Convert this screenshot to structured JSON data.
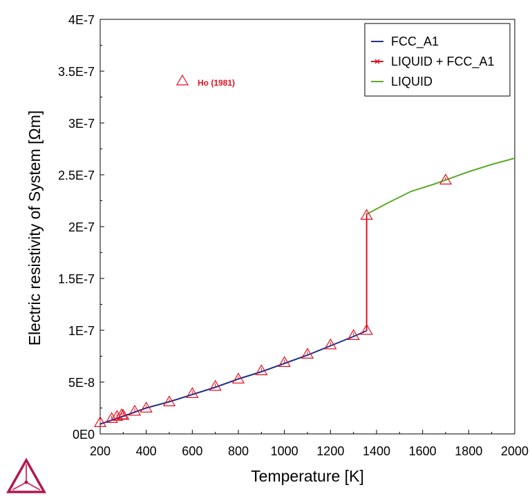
{
  "chart_data": {
    "type": "line",
    "xlabel": "Temperature [K]",
    "ylabel": "Electric resistivity of System [Ωm]",
    "xlim": [
      200,
      2000
    ],
    "ylim": [
      0,
      4e-07
    ],
    "x_ticks": [
      200,
      400,
      600,
      800,
      1000,
      1200,
      1400,
      1600,
      1800,
      2000
    ],
    "y_ticks": [
      0,
      5e-08,
      1e-07,
      1.5e-07,
      2e-07,
      2.5e-07,
      3e-07,
      3.5e-07,
      4e-07
    ],
    "x_tick_labels": [
      "200",
      "400",
      "600",
      "800",
      "1000",
      "1200",
      "1400",
      "1600",
      "1800",
      "2000"
    ],
    "y_tick_labels": [
      "0E0",
      "5E-8",
      "1E-7",
      "1.5E-7",
      "2E-7",
      "2.5E-7",
      "3E-7",
      "3.5E-7",
      "4E-7"
    ],
    "grid": false,
    "legend_position": "top-right",
    "series": [
      {
        "name": "FCC_A1",
        "color": "#1f2f8a",
        "marker": "none",
        "x": [
          200,
          300,
          400,
          500,
          600,
          700,
          800,
          900,
          1000,
          1100,
          1200,
          1300,
          1357
        ],
        "y": [
          9.5e-09,
          1.7e-08,
          2.5e-08,
          3.1e-08,
          3.8e-08,
          4.5e-08,
          5.3e-08,
          6e-08,
          6.8e-08,
          7.6e-08,
          8.5e-08,
          9.4e-08,
          9.95e-08
        ]
      },
      {
        "name": "LIQUID + FCC_A1",
        "color": "#e01020",
        "marker": "x",
        "x": [
          1357,
          1357
        ],
        "y": [
          9.95e-08,
          2.12e-07
        ]
      },
      {
        "name": "LIQUID",
        "color": "#5aaa28",
        "marker": "none",
        "x": [
          1357,
          1450,
          1550,
          1650,
          1700,
          1800,
          1900,
          2000
        ],
        "y": [
          2.12e-07,
          2.23e-07,
          2.34e-07,
          2.41e-07,
          2.45e-07,
          2.53e-07,
          2.6e-07,
          2.66e-07
        ]
      }
    ],
    "experimental": {
      "name": "Ho (1981)",
      "color": "#e01020",
      "marker": "triangle",
      "x": [
        200,
        250,
        273,
        293,
        300,
        350,
        400,
        500,
        600,
        700,
        800,
        900,
        1000,
        1100,
        1200,
        1300,
        1357,
        1357,
        1700
      ],
      "y": [
        1.1e-08,
        1.5e-08,
        1.7e-08,
        1.85e-08,
        1.8e-08,
        2.2e-08,
        2.5e-08,
        3.1e-08,
        3.9e-08,
        4.6e-08,
        5.3e-08,
        6.1e-08,
        6.9e-08,
        7.7e-08,
        8.6e-08,
        9.5e-08,
        1e-07,
        2.11e-07,
        2.45e-07
      ]
    },
    "annotation": {
      "text": "Ho (1981)"
    }
  },
  "logo": {
    "name": "thermo-calc-logo",
    "colors": [
      "#b01848",
      "#d04070"
    ]
  }
}
